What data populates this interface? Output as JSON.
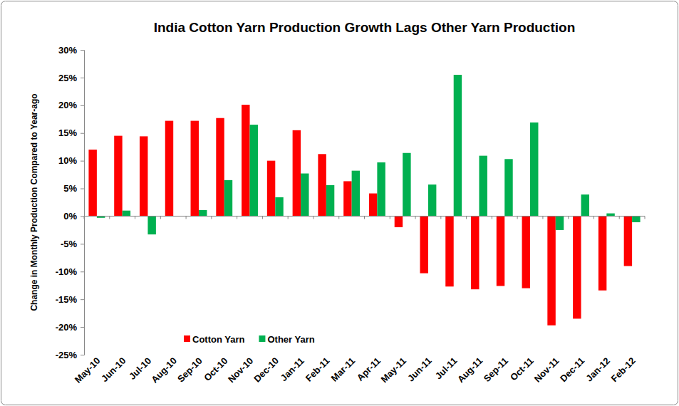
{
  "chart_data": {
    "type": "bar",
    "title": "India Cotton Yarn Production Growth Lags Other Yarn Production",
    "ylabel": "Change in Monthly Production Compared to Year-ago",
    "categories": [
      "May-10",
      "Jun-10",
      "Jul-10",
      "Aug-10",
      "Sep-10",
      "Oct-10",
      "Nov-10",
      "Dec-10",
      "Jan-11",
      "Feb-11",
      "Mar-11",
      "Apr-11",
      "May-11",
      "Jun-11",
      "Jul-11",
      "Aug-11",
      "Sep-11",
      "Oct-11",
      "Nov-11",
      "Dec-11",
      "Jan-12",
      "Feb-12"
    ],
    "series": [
      {
        "name": "Cotton Yarn",
        "color": "#ff0000",
        "values": [
          12,
          14.5,
          14.4,
          17.2,
          17.2,
          17.7,
          20.1,
          10,
          15.5,
          11.2,
          6.3,
          4.1,
          -2,
          -10.3,
          -12.7,
          -13.2,
          -12.6,
          -13,
          -19.7,
          -18.5,
          -13.4,
          -9
        ]
      },
      {
        "name": "Other Yarn",
        "color": "#00b050",
        "values": [
          -0.3,
          1,
          -3.3,
          0,
          1.1,
          6.5,
          16.5,
          3.4,
          7.7,
          5.6,
          8.2,
          9.7,
          11.4,
          5.7,
          25.5,
          10.9,
          10.3,
          16.9,
          -2.5,
          3.9,
          0.5,
          -1.1
        ]
      }
    ],
    "ylim": [
      -25,
      30
    ],
    "yticks": [
      {
        "value": -25,
        "label": "-25%"
      },
      {
        "value": -20,
        "label": "-20%"
      },
      {
        "value": -15,
        "label": "-15%"
      },
      {
        "value": -10,
        "label": "-10%"
      },
      {
        "value": -5,
        "label": "-5%"
      },
      {
        "value": 0,
        "label": "0%"
      },
      {
        "value": 5,
        "label": "5%"
      },
      {
        "value": 10,
        "label": "10%"
      },
      {
        "value": 15,
        "label": "15%"
      },
      {
        "value": 20,
        "label": "20%"
      },
      {
        "value": 25,
        "label": "25%"
      },
      {
        "value": 30,
        "label": "30%"
      }
    ],
    "grid": false,
    "legend": "lower left"
  }
}
